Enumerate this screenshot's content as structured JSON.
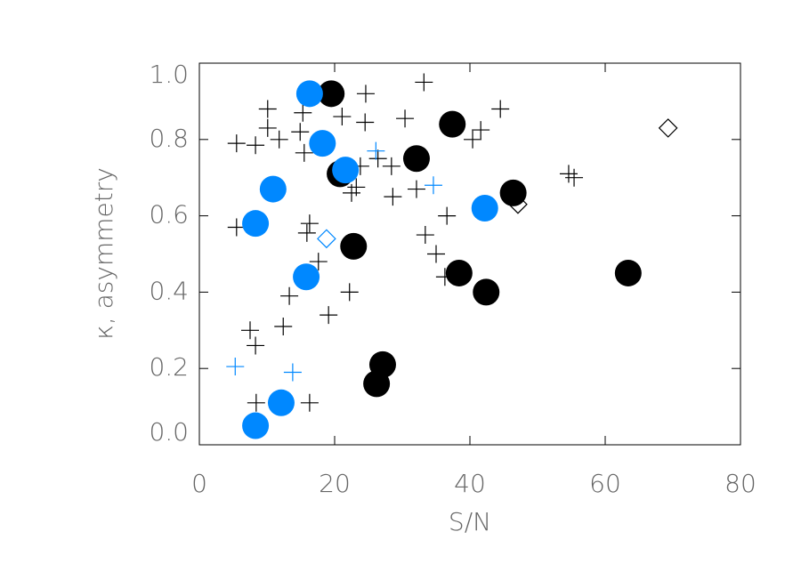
{
  "chart_data": {
    "type": "scatter",
    "xlabel": "S/N",
    "ylabel": "κ, asymmetry",
    "xlim": [
      0,
      80
    ],
    "ylim": [
      0,
      1.0
    ],
    "xticks": [
      0,
      20,
      40,
      60,
      80
    ],
    "yticks": [
      {
        "value": 0,
        "label": "0.0"
      },
      {
        "value": 0.2,
        "label": "0.2"
      },
      {
        "value": 0.4,
        "label": "0.4"
      },
      {
        "value": 0.6,
        "label": "0.6"
      },
      {
        "value": 0.8,
        "label": "0.8"
      },
      {
        "value": 1.0,
        "label": "1.0"
      }
    ],
    "series": [
      {
        "marker": "plus",
        "color": "#000000",
        "x": [
          5.5,
          8.3,
          10.1,
          10.1,
          11.8,
          15.3,
          14.9,
          15.5,
          21.1,
          24.6,
          24.5,
          23.8,
          23.2,
          22.5,
          26.4,
          28.4,
          28.6,
          30.4,
          32.1,
          33.2,
          33.4,
          35.0,
          36.6,
          36.3,
          40.4,
          41.6,
          44.5,
          54.6,
          55.4,
          5.5,
          16.3,
          15.9,
          17.6,
          19.1,
          22.2,
          13.3,
          12.4,
          7.5,
          8.3,
          8.4,
          16.3
        ],
        "y": [
          0.79,
          0.785,
          0.88,
          0.83,
          0.8,
          0.87,
          0.82,
          0.765,
          0.86,
          0.92,
          0.845,
          0.73,
          0.675,
          0.66,
          0.75,
          0.73,
          0.65,
          0.855,
          0.67,
          0.95,
          0.55,
          0.5,
          0.6,
          0.44,
          0.8,
          0.825,
          0.88,
          0.71,
          0.7,
          0.57,
          0.58,
          0.555,
          0.48,
          0.34,
          0.4,
          0.39,
          0.31,
          0.3,
          0.26,
          0.11,
          0.11
        ]
      },
      {
        "marker": "plus",
        "color": "#0088ff",
        "x": [
          5.3,
          13.8,
          26.1,
          34.6
        ],
        "y": [
          0.205,
          0.19,
          0.77,
          0.68
        ]
      },
      {
        "marker": "diamond",
        "color": "#000000",
        "x": [
          69.3,
          47.1
        ],
        "y": [
          0.83,
          0.63
        ]
      },
      {
        "marker": "diamond",
        "color": "#0088ff",
        "x": [
          18.8
        ],
        "y": [
          0.54
        ]
      },
      {
        "marker": "circle",
        "color": "#000000",
        "x": [
          19.5,
          37.4,
          32.1,
          20.8,
          46.4,
          22.8,
          38.4,
          63.4,
          42.4,
          27.1,
          26.2
        ],
        "y": [
          0.92,
          0.84,
          0.75,
          0.71,
          0.66,
          0.52,
          0.45,
          0.45,
          0.4,
          0.21,
          0.16
        ]
      },
      {
        "marker": "circle",
        "color": "#0088ff",
        "x": [
          16.3,
          18.2,
          21.6,
          10.9,
          8.3,
          42.2,
          15.8,
          12.1,
          8.3
        ],
        "y": [
          0.92,
          0.79,
          0.72,
          0.67,
          0.58,
          0.62,
          0.44,
          0.11,
          0.05
        ]
      }
    ]
  }
}
